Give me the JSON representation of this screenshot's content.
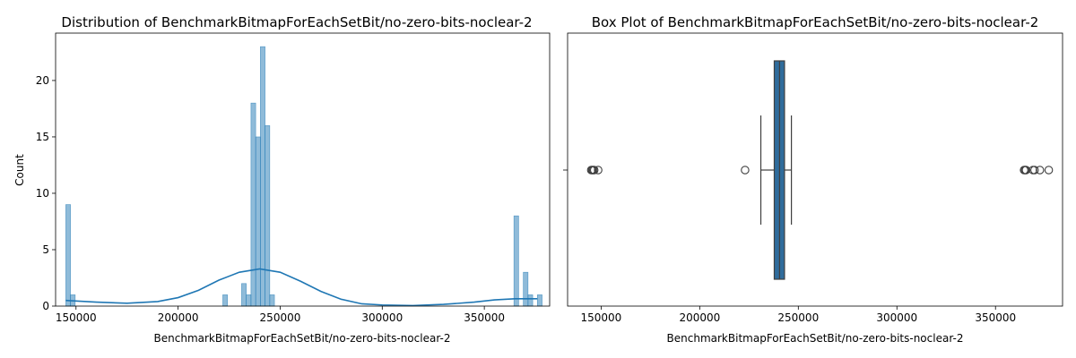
{
  "colors": {
    "hist": "#1f77b4",
    "box": "#2f6c9c"
  },
  "chart_data": [
    {
      "type": "histogram",
      "title": "Distribution of BenchmarkBitmapForEachSetBit/no-zero-bits-noclear-2",
      "xlabel": "BenchmarkBitmapForEachSetBit/no-zero-bits-noclear-2",
      "ylabel": "Count",
      "xlim": [
        140000,
        382000
      ],
      "ylim": [
        0,
        24.2
      ],
      "xticks": [
        150000,
        200000,
        250000,
        300000,
        350000
      ],
      "xtick_labels": [
        "150000",
        "200000",
        "250000",
        "300000",
        "350000"
      ],
      "yticks": [
        0,
        5,
        10,
        15,
        20
      ],
      "bin_width": 2300,
      "bins": [
        {
          "x": 145000,
          "count": 9
        },
        {
          "x": 147300,
          "count": 1
        },
        {
          "x": 221900,
          "count": 1
        },
        {
          "x": 231100,
          "count": 2
        },
        {
          "x": 233400,
          "count": 1
        },
        {
          "x": 235700,
          "count": 18
        },
        {
          "x": 238000,
          "count": 15
        },
        {
          "x": 240300,
          "count": 23
        },
        {
          "x": 242600,
          "count": 16
        },
        {
          "x": 244900,
          "count": 1
        },
        {
          "x": 364500,
          "count": 8
        },
        {
          "x": 369100,
          "count": 3
        },
        {
          "x": 371400,
          "count": 1
        },
        {
          "x": 376000,
          "count": 1
        }
      ],
      "kde": [
        [
          145000,
          0.5
        ],
        [
          160000,
          0.35
        ],
        [
          175000,
          0.25
        ],
        [
          190000,
          0.4
        ],
        [
          200000,
          0.75
        ],
        [
          210000,
          1.4
        ],
        [
          220000,
          2.3
        ],
        [
          230000,
          3.0
        ],
        [
          240000,
          3.3
        ],
        [
          250000,
          3.0
        ],
        [
          260000,
          2.2
        ],
        [
          270000,
          1.3
        ],
        [
          280000,
          0.6
        ],
        [
          290000,
          0.2
        ],
        [
          300000,
          0.1
        ],
        [
          315000,
          0.05
        ],
        [
          330000,
          0.15
        ],
        [
          345000,
          0.35
        ],
        [
          355000,
          0.55
        ],
        [
          365000,
          0.65
        ],
        [
          376000,
          0.65
        ]
      ]
    },
    {
      "type": "box",
      "title": "Box Plot of BenchmarkBitmapForEachSetBit/no-zero-bits-noclear-2",
      "xlabel": "BenchmarkBitmapForEachSetBit/no-zero-bits-noclear-2",
      "xlim": [
        133000,
        384000
      ],
      "xticks": [
        150000,
        200000,
        250000,
        300000,
        350000
      ],
      "xtick_labels": [
        "150000",
        "200000",
        "250000",
        "300000",
        "350000"
      ],
      "whisker_low": 231000,
      "q1": 237800,
      "median": 240500,
      "q3": 243000,
      "whisker_high": 246500,
      "outliers": [
        145000,
        145500,
        146000,
        146500,
        148500,
        223000,
        364500,
        365000,
        365500,
        369000,
        369800,
        372500,
        377000
      ]
    }
  ]
}
